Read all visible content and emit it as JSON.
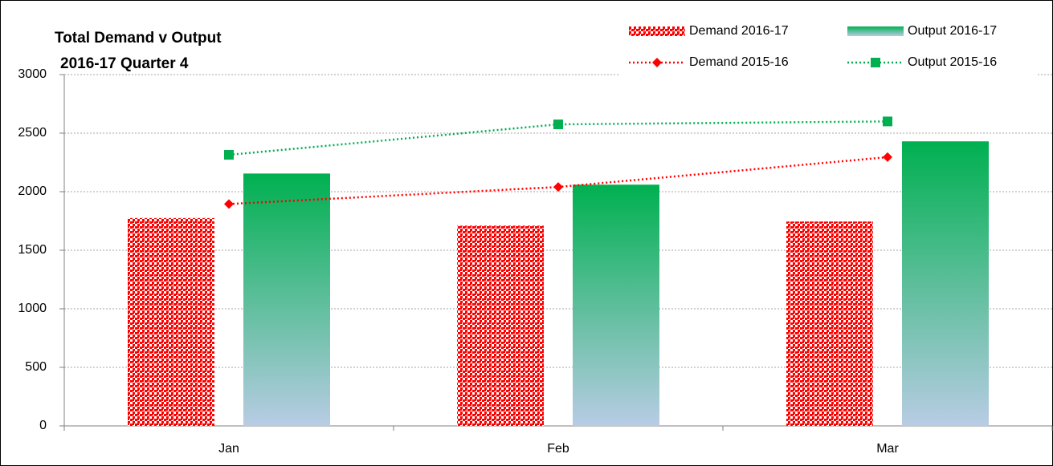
{
  "chart_data": {
    "type": "bar",
    "title": "Total Demand v Output",
    "subtitle": "2016-17  Quarter 4",
    "categories": [
      "Jan",
      "Feb",
      "Mar"
    ],
    "series": [
      {
        "name": "Demand 2016-17",
        "type": "bar",
        "color": "#ff0000",
        "values": [
          1775,
          1710,
          1745
        ]
      },
      {
        "name": "Output 2016-17",
        "type": "bar",
        "color": "#00b050",
        "values": [
          2155,
          2060,
          2430
        ]
      },
      {
        "name": "Demand 2015-16",
        "type": "line",
        "color": "#ff0000",
        "values": [
          1895,
          2040,
          2295
        ]
      },
      {
        "name": "Output 2015-16",
        "type": "line",
        "color": "#00b050",
        "values": [
          2315,
          2575,
          2600
        ]
      }
    ],
    "ylim": [
      0,
      3000
    ],
    "yticks": [
      0,
      500,
      1000,
      1500,
      2000,
      2500,
      3000
    ],
    "grid": true,
    "legend": "top-right"
  }
}
